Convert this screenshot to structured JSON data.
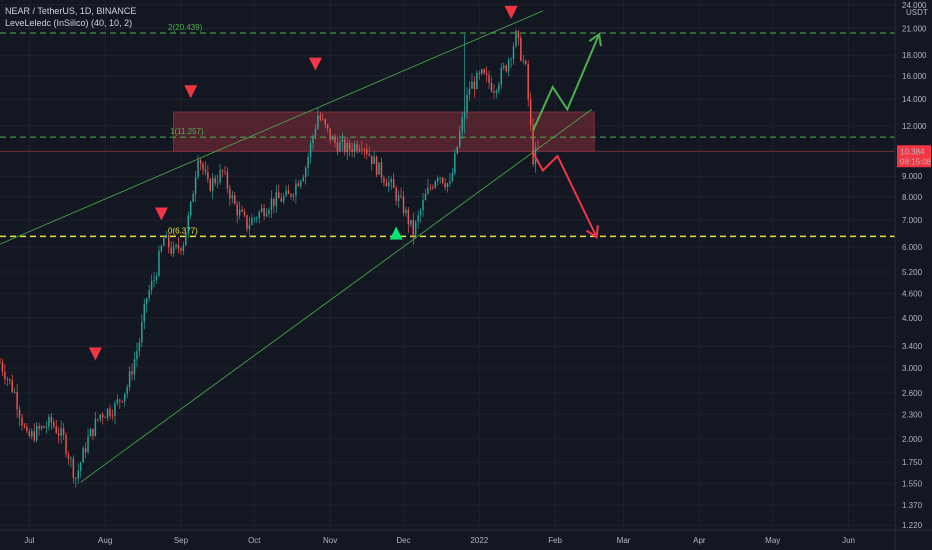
{
  "header": {
    "symbol_line": "NEAR / TetherUS, 1D, BINANCE",
    "indicator_line": "LeveLeledc (InSilico) (40, 10, 2)"
  },
  "colors": {
    "background": "#131722",
    "up": "#26a69a",
    "down": "#ef5350",
    "green_level": "#4caf50",
    "yellow_level": "#e8e338",
    "zone": "#6b2a33",
    "price_tag": "#f23645"
  },
  "chart_data": {
    "type": "candlestick",
    "scale": "log",
    "currency": "USDT",
    "ylim": [
      1.2,
      24.0
    ],
    "y_ticks": [
      "24.000",
      "21.000",
      "18.000",
      "16.000",
      "14.000",
      "12.000",
      "10.384",
      "9.000",
      "8.000",
      "7.000",
      "6.000",
      "5.200",
      "4.600",
      "4.000",
      "3.400",
      "3.000",
      "2.600",
      "2.300",
      "2.000",
      "1.750",
      "1.550",
      "1.370",
      "1.220"
    ],
    "y_tick_values": [
      24.0,
      21.0,
      18.0,
      16.0,
      14.0,
      12.0,
      10.384,
      9.0,
      8.0,
      7.0,
      6.0,
      5.2,
      4.6,
      4.0,
      3.4,
      3.0,
      2.6,
      2.3,
      2.0,
      1.75,
      1.55,
      1.37,
      1.22
    ],
    "x_start": "2021-06-19",
    "x_end": "2022-06-20",
    "x_ticks": [
      {
        "label": "Jul",
        "date": "2021-07-01"
      },
      {
        "label": "Aug",
        "date": "2021-08-01"
      },
      {
        "label": "Sep",
        "date": "2021-09-01"
      },
      {
        "label": "Oct",
        "date": "2021-10-01"
      },
      {
        "label": "Nov",
        "date": "2021-11-01"
      },
      {
        "label": "Dec",
        "date": "2021-12-01"
      },
      {
        "label": "2022",
        "date": "2022-01-01"
      },
      {
        "label": "Feb",
        "date": "2022-02-01"
      },
      {
        "label": "Mar",
        "date": "2022-03-01"
      },
      {
        "label": "Apr",
        "date": "2022-04-01"
      },
      {
        "label": "May",
        "date": "2022-05-01"
      },
      {
        "label": "Jun",
        "date": "2022-06-01"
      }
    ],
    "price_path": [
      [
        "2021-06-19",
        3.1
      ],
      [
        "2021-06-25",
        2.6
      ],
      [
        "2021-06-30",
        2.0
      ],
      [
        "2021-07-05",
        2.1
      ],
      [
        "2021-07-10",
        2.2
      ],
      [
        "2021-07-15",
        2.0
      ],
      [
        "2021-07-20",
        1.6
      ],
      [
        "2021-07-25",
        2.0
      ],
      [
        "2021-07-30",
        2.3
      ],
      [
        "2021-08-05",
        2.4
      ],
      [
        "2021-08-10",
        2.7
      ],
      [
        "2021-08-15",
        3.5
      ],
      [
        "2021-08-18",
        4.5
      ],
      [
        "2021-08-21",
        5.0
      ],
      [
        "2021-08-25",
        6.3
      ],
      [
        "2021-08-29",
        5.8
      ],
      [
        "2021-09-02",
        6.2
      ],
      [
        "2021-09-05",
        7.5
      ],
      [
        "2021-09-08",
        10.3
      ],
      [
        "2021-09-12",
        8.5
      ],
      [
        "2021-09-18",
        9.2
      ],
      [
        "2021-09-23",
        7.6
      ],
      [
        "2021-09-28",
        6.8
      ],
      [
        "2021-10-02",
        7.2
      ],
      [
        "2021-10-08",
        7.8
      ],
      [
        "2021-10-15",
        8.0
      ],
      [
        "2021-10-22",
        9.5
      ],
      [
        "2021-10-27",
        12.8
      ],
      [
        "2021-11-02",
        11.0
      ],
      [
        "2021-11-08",
        10.5
      ],
      [
        "2021-11-14",
        11.0
      ],
      [
        "2021-11-20",
        9.5
      ],
      [
        "2021-11-26",
        8.5
      ],
      [
        "2021-12-01",
        7.5
      ],
      [
        "2021-12-05",
        6.5
      ],
      [
        "2021-12-10",
        8.0
      ],
      [
        "2021-12-15",
        9.2
      ],
      [
        "2021-12-20",
        8.5
      ],
      [
        "2021-12-24",
        11.5
      ],
      [
        "2021-12-28",
        15.0
      ],
      [
        "2022-01-02",
        16.0
      ],
      [
        "2022-01-07",
        15.0
      ],
      [
        "2022-01-12",
        17.0
      ],
      [
        "2022-01-16",
        20.0
      ],
      [
        "2022-01-20",
        16.5
      ],
      [
        "2022-01-23",
        10.0
      ],
      [
        "2022-01-25",
        10.4
      ]
    ],
    "series_last": {
      "value": 10.384,
      "label": "10.384",
      "countdown": "08:15:08"
    },
    "levels": [
      {
        "label": "2(20.439)",
        "value": 20.439,
        "color": "#4caf50",
        "style": "dashed"
      },
      {
        "label": "1(11.257)",
        "value": 11.257,
        "color": "#4caf50",
        "style": "dashed"
      },
      {
        "label": "0(6.377)",
        "value": 6.377,
        "color": "#e8e338",
        "style": "dashed"
      }
    ],
    "zone": {
      "from": 10.384,
      "to": 13.0,
      "date_start": "2021-08-29",
      "date_end": "2022-02-17"
    },
    "channel": {
      "upper": [
        [
          "2021-06-19",
          6.1
        ],
        [
          "2022-01-27",
          23.2
        ]
      ],
      "lower": [
        [
          "2021-07-22",
          1.56
        ],
        [
          "2022-02-16",
          13.2
        ]
      ]
    },
    "markers": [
      {
        "type": "down",
        "date": "2021-07-28",
        "value": 3.25,
        "color": "#f23645"
      },
      {
        "type": "down",
        "date": "2021-08-24",
        "value": 7.25,
        "color": "#f23645"
      },
      {
        "type": "down",
        "date": "2021-09-05",
        "value": 14.6,
        "color": "#f23645"
      },
      {
        "type": "down",
        "date": "2021-10-26",
        "value": 17.1,
        "color": "#f23645"
      },
      {
        "type": "up",
        "date": "2021-11-28",
        "value": 6.5,
        "color": "#00e676"
      },
      {
        "type": "down",
        "date": "2022-01-14",
        "value": 23.0,
        "color": "#f23645"
      }
    ],
    "projections": [
      {
        "name": "bull",
        "color": "#4caf50",
        "points": [
          [
            "2022-01-23",
            11.7
          ],
          [
            "2022-01-31",
            15.0
          ],
          [
            "2022-02-06",
            13.2
          ],
          [
            "2022-02-19",
            20.3
          ]
        ]
      },
      {
        "name": "bear",
        "color": "#f23645",
        "points": [
          [
            "2022-01-23",
            10.3
          ],
          [
            "2022-01-27",
            9.3
          ],
          [
            "2022-02-02",
            10.1
          ],
          [
            "2022-02-18",
            6.35
          ]
        ]
      }
    ]
  }
}
